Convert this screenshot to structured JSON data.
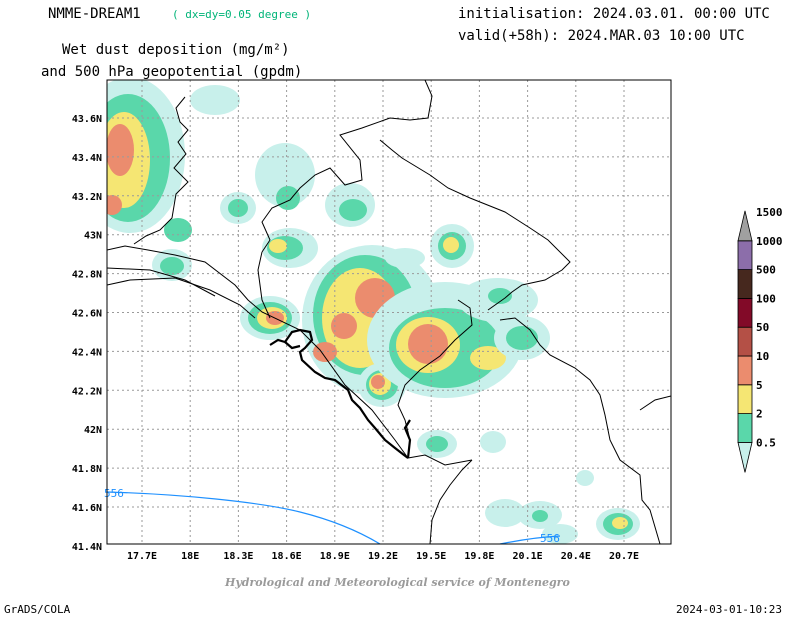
{
  "header": {
    "model": "NMME-DREAM1",
    "resolution": "( dx=dy=0.05 degree )",
    "title_line1": "Wet dust deposition (mg/m²)",
    "title_line2": "and 500 hPa geopotential (gpdm)",
    "initialisation": "initialisation: 2024.03.01. 00:00 UTC",
    "valid": "valid(+58h): 2024.MAR.03 10:00 UTC"
  },
  "map": {
    "lat_labels": [
      "43.6N",
      "43.4N",
      "43.2N",
      "43N",
      "42.8N",
      "42.6N",
      "42.4N",
      "42.2N",
      "42N",
      "41.8N",
      "41.6N",
      "41.4N"
    ],
    "lon_labels": [
      "17.7E",
      "18E",
      "18.3E",
      "18.6E",
      "18.9E",
      "19.2E",
      "19.5E",
      "19.8E",
      "20.1E",
      "20.4E",
      "20.7E"
    ],
    "contour_labels": [
      "556",
      "556"
    ],
    "contour_color": "#1e90ff"
  },
  "colorbar": {
    "labels": [
      "0.5",
      "2",
      "5",
      "10",
      "50",
      "100",
      "500",
      "1000",
      "1500"
    ],
    "colors": [
      "#c8f0eb",
      "#5ad7aa",
      "#f5e673",
      "#eb8c6e",
      "#b45046",
      "#820a28",
      "#46281e",
      "#8c6eaa",
      "#a0a0a0"
    ]
  },
  "footer": {
    "credit": "Hydrological and Meteorological service of Montenegro",
    "software": "GrADS/COLA",
    "timestamp": "2024-03-01-10:23"
  }
}
